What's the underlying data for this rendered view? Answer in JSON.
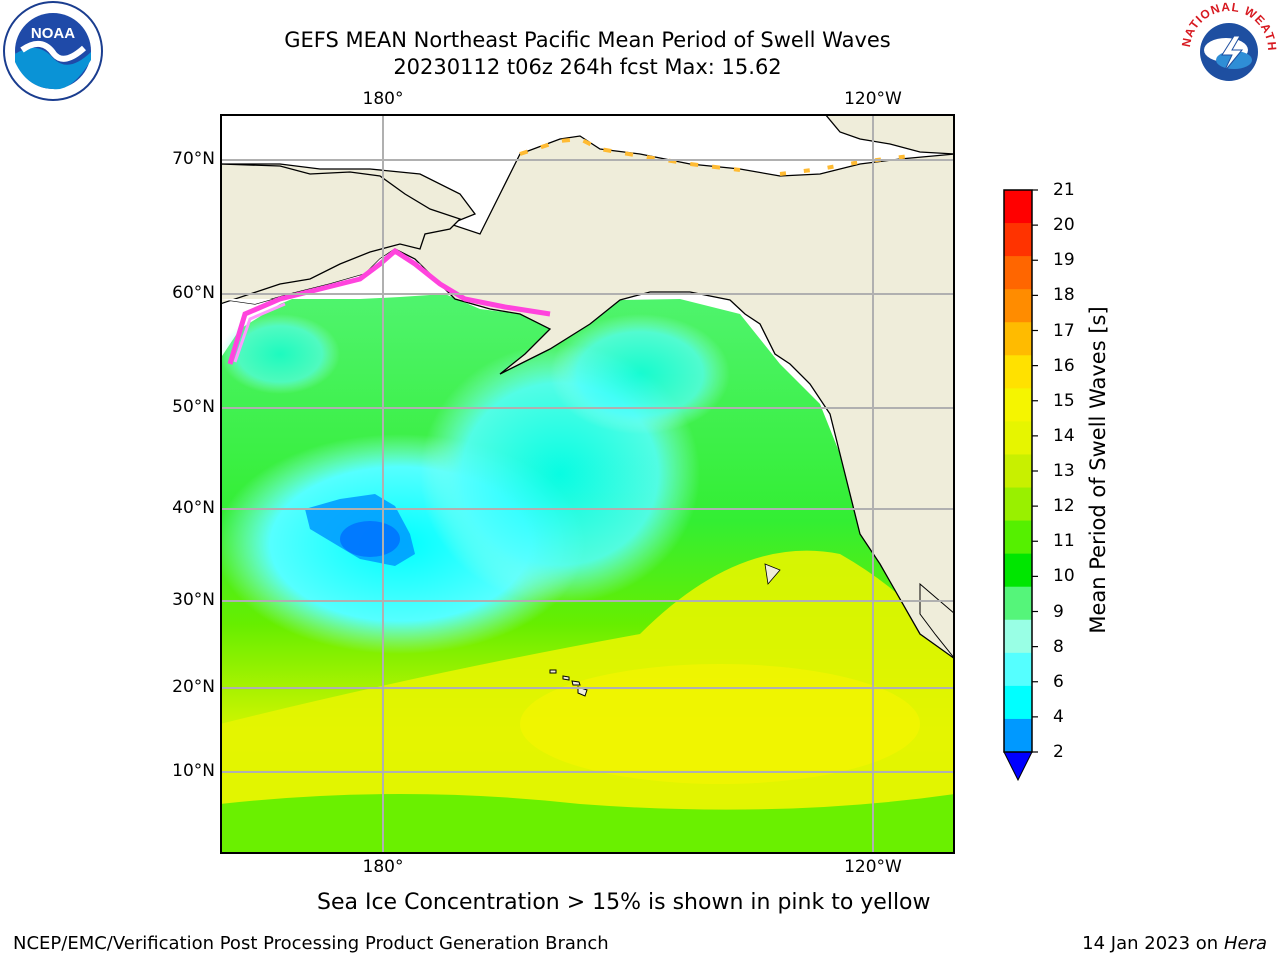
{
  "header": {
    "title_line1": "GEFS MEAN Northeast Pacific Mean Period of Swell Waves",
    "title_line2": "20230112 t06z 264h fcst   Max: 15.62"
  },
  "map": {
    "lon_labels_top": [
      "180°",
      "120°W"
    ],
    "lon_labels_bottom": [
      "180°",
      "120°W"
    ],
    "lat_labels": [
      "70°N",
      "60°N",
      "50°N",
      "40°N",
      "30°N",
      "20°N",
      "10°N"
    ],
    "land_color": "#efedda",
    "grid_color": "#b0b0b0"
  },
  "colorbar": {
    "label": "Mean Period of Swell Waves [s]",
    "ticks": [
      "21",
      "20",
      "19",
      "18",
      "17",
      "16",
      "15",
      "14",
      "13",
      "12",
      "11",
      "10",
      "9",
      "8",
      "6",
      "4",
      "2"
    ],
    "colors": [
      "#ff0000",
      "#ff3300",
      "#ff6600",
      "#ff8c00",
      "#ffbb00",
      "#ffe100",
      "#f5f500",
      "#e6f500",
      "#c8f000",
      "#99f000",
      "#55f000",
      "#00e600",
      "#55f57a",
      "#99ffe5",
      "#55ffff",
      "#00ffff",
      "#0099ff",
      "#0044ff"
    ],
    "extend_color": "#0000ff"
  },
  "footer": {
    "note": "Sea Ice Concentration > 15% is shown in pink to yellow",
    "credit_left": "NCEP/EMC/Verification Post Processing Product Generation Branch",
    "credit_date": "14 Jan 2023 on ",
    "credit_host": "Hera"
  },
  "logos": {
    "noaa_text": "NOAA",
    "nws_text": "NATIONAL WEATHER SERVICE"
  }
}
